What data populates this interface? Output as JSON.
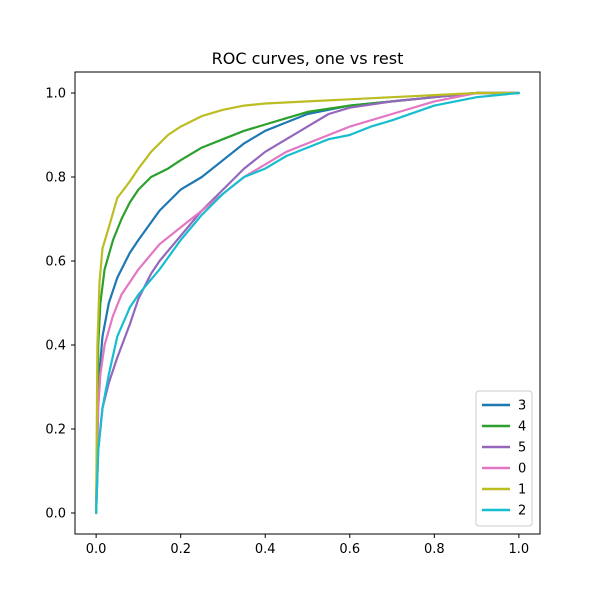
{
  "chart_data": {
    "type": "line",
    "title": "ROC curves, one vs rest",
    "xlabel": "",
    "ylabel": "",
    "xlim": [
      -0.05,
      1.05
    ],
    "ylim": [
      -0.05,
      1.05
    ],
    "xticks": [
      0.0,
      0.2,
      0.4,
      0.6,
      0.8,
      1.0
    ],
    "yticks": [
      0.0,
      0.2,
      0.4,
      0.6,
      0.8,
      1.0
    ],
    "xtick_labels": [
      "0.0",
      "0.2",
      "0.4",
      "0.6",
      "0.8",
      "1.0"
    ],
    "ytick_labels": [
      "0.0",
      "0.2",
      "0.4",
      "0.6",
      "0.8",
      "1.0"
    ],
    "grid": false,
    "legend_position": "bottom-right",
    "series": [
      {
        "name": "3",
        "color": "#1f77b4",
        "points": [
          [
            0,
            0
          ],
          [
            0.005,
            0.3
          ],
          [
            0.015,
            0.42
          ],
          [
            0.03,
            0.5
          ],
          [
            0.05,
            0.56
          ],
          [
            0.08,
            0.62
          ],
          [
            0.1,
            0.65
          ],
          [
            0.15,
            0.72
          ],
          [
            0.2,
            0.77
          ],
          [
            0.25,
            0.8
          ],
          [
            0.3,
            0.84
          ],
          [
            0.35,
            0.88
          ],
          [
            0.4,
            0.91
          ],
          [
            0.45,
            0.93
          ],
          [
            0.5,
            0.95
          ],
          [
            0.6,
            0.97
          ],
          [
            0.7,
            0.98
          ],
          [
            0.8,
            0.99
          ],
          [
            0.9,
            1.0
          ],
          [
            1.0,
            1.0
          ]
        ]
      },
      {
        "name": "4",
        "color": "#2ca02c",
        "points": [
          [
            0,
            0
          ],
          [
            0.005,
            0.4
          ],
          [
            0.01,
            0.5
          ],
          [
            0.02,
            0.58
          ],
          [
            0.04,
            0.65
          ],
          [
            0.06,
            0.7
          ],
          [
            0.08,
            0.74
          ],
          [
            0.1,
            0.77
          ],
          [
            0.13,
            0.8
          ],
          [
            0.17,
            0.82
          ],
          [
            0.2,
            0.84
          ],
          [
            0.25,
            0.87
          ],
          [
            0.3,
            0.89
          ],
          [
            0.35,
            0.91
          ],
          [
            0.4,
            0.925
          ],
          [
            0.45,
            0.94
          ],
          [
            0.5,
            0.955
          ],
          [
            0.6,
            0.97
          ],
          [
            0.7,
            0.98
          ],
          [
            0.8,
            0.99
          ],
          [
            0.9,
            1.0
          ],
          [
            1.0,
            1.0
          ]
        ]
      },
      {
        "name": "5",
        "color": "#9467bd",
        "points": [
          [
            0,
            0
          ],
          [
            0.005,
            0.15
          ],
          [
            0.015,
            0.25
          ],
          [
            0.03,
            0.31
          ],
          [
            0.05,
            0.37
          ],
          [
            0.08,
            0.45
          ],
          [
            0.1,
            0.51
          ],
          [
            0.13,
            0.57
          ],
          [
            0.15,
            0.6
          ],
          [
            0.2,
            0.66
          ],
          [
            0.25,
            0.72
          ],
          [
            0.3,
            0.77
          ],
          [
            0.35,
            0.82
          ],
          [
            0.4,
            0.86
          ],
          [
            0.45,
            0.89
          ],
          [
            0.5,
            0.92
          ],
          [
            0.55,
            0.95
          ],
          [
            0.6,
            0.965
          ],
          [
            0.7,
            0.98
          ],
          [
            0.8,
            0.99
          ],
          [
            0.9,
            1.0
          ],
          [
            1.0,
            1.0
          ]
        ]
      },
      {
        "name": "0",
        "color": "#e377c2",
        "points": [
          [
            0,
            0
          ],
          [
            0.005,
            0.25
          ],
          [
            0.01,
            0.33
          ],
          [
            0.02,
            0.4
          ],
          [
            0.04,
            0.47
          ],
          [
            0.06,
            0.52
          ],
          [
            0.08,
            0.55
          ],
          [
            0.1,
            0.58
          ],
          [
            0.15,
            0.64
          ],
          [
            0.2,
            0.68
          ],
          [
            0.25,
            0.72
          ],
          [
            0.3,
            0.76
          ],
          [
            0.35,
            0.8
          ],
          [
            0.4,
            0.83
          ],
          [
            0.45,
            0.86
          ],
          [
            0.5,
            0.88
          ],
          [
            0.55,
            0.9
          ],
          [
            0.6,
            0.92
          ],
          [
            0.7,
            0.95
          ],
          [
            0.8,
            0.98
          ],
          [
            0.9,
            1.0
          ],
          [
            1.0,
            1.0
          ]
        ]
      },
      {
        "name": "1",
        "color": "#bcbd22",
        "points": [
          [
            0,
            0
          ],
          [
            0.003,
            0.4
          ],
          [
            0.008,
            0.55
          ],
          [
            0.015,
            0.63
          ],
          [
            0.03,
            0.68
          ],
          [
            0.05,
            0.75
          ],
          [
            0.08,
            0.79
          ],
          [
            0.1,
            0.82
          ],
          [
            0.13,
            0.86
          ],
          [
            0.17,
            0.9
          ],
          [
            0.2,
            0.92
          ],
          [
            0.25,
            0.945
          ],
          [
            0.3,
            0.96
          ],
          [
            0.35,
            0.97
          ],
          [
            0.4,
            0.975
          ],
          [
            0.5,
            0.98
          ],
          [
            0.6,
            0.985
          ],
          [
            0.7,
            0.99
          ],
          [
            0.8,
            0.995
          ],
          [
            0.9,
            1.0
          ],
          [
            1.0,
            1.0
          ]
        ]
      },
      {
        "name": "2",
        "color": "#17becf",
        "points": [
          [
            0,
            0
          ],
          [
            0.005,
            0.15
          ],
          [
            0.015,
            0.25
          ],
          [
            0.03,
            0.33
          ],
          [
            0.05,
            0.42
          ],
          [
            0.08,
            0.49
          ],
          [
            0.1,
            0.52
          ],
          [
            0.15,
            0.58
          ],
          [
            0.2,
            0.65
          ],
          [
            0.25,
            0.71
          ],
          [
            0.3,
            0.76
          ],
          [
            0.35,
            0.8
          ],
          [
            0.4,
            0.82
          ],
          [
            0.45,
            0.85
          ],
          [
            0.5,
            0.87
          ],
          [
            0.55,
            0.89
          ],
          [
            0.6,
            0.9
          ],
          [
            0.65,
            0.92
          ],
          [
            0.7,
            0.935
          ],
          [
            0.8,
            0.97
          ],
          [
            0.9,
            0.99
          ],
          [
            1.0,
            1.0
          ]
        ]
      }
    ]
  }
}
